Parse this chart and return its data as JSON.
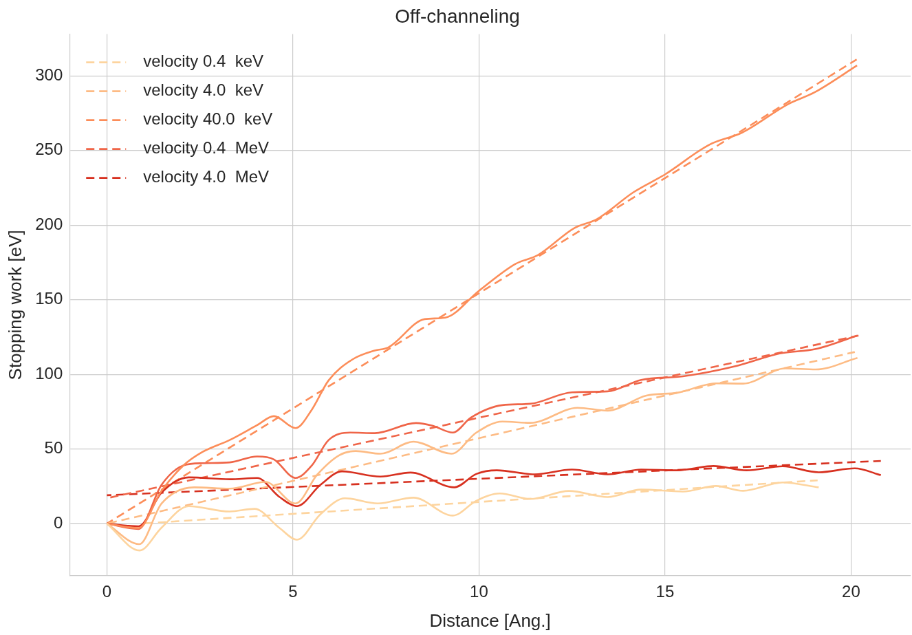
{
  "chart_data": {
    "type": "line",
    "title": "Off-channeling",
    "xlabel": "Distance [Ang.]",
    "ylabel": "Stopping work [eV]",
    "xlim": [
      -1,
      21.6
    ],
    "ylim": [
      -35,
      328
    ],
    "xticks": [
      0,
      5,
      10,
      15,
      20
    ],
    "yticks": [
      0,
      50,
      100,
      150,
      200,
      250,
      300
    ],
    "grid": true,
    "legend": "top left",
    "marker": "none",
    "series": [
      {
        "color": "#fdd49e",
        "line_style": "solid",
        "x": [
          0,
          0.88,
          1.47,
          2.2,
          3.3,
          3.97,
          4.63,
          5.11,
          5.74,
          6.4,
          7.28,
          8.24,
          9.3,
          9.93,
          10.56,
          11.38,
          12.42,
          13.46,
          14.36,
          15.48,
          16.37,
          17.1,
          18.16,
          19.13
        ],
        "values": [
          0,
          -18,
          -2.7,
          11.7,
          8.1,
          9.9,
          -2.7,
          -10.8,
          6.3,
          17,
          13.5,
          17.4,
          5.4,
          15.3,
          20.2,
          16.5,
          21.9,
          17.8,
          22.8,
          21.5,
          25.2,
          22,
          27.6,
          24.3
        ]
      },
      {
        "color": "#fdbb84",
        "line_style": "solid",
        "x": [
          0,
          0.87,
          1.47,
          2.35,
          3.3,
          4.26,
          5.07,
          5.66,
          6.25,
          6.69,
          7.35,
          8.24,
          9.26,
          9.93,
          10.63,
          11.38,
          12.65,
          13.46,
          14.5,
          15.33,
          16.37,
          17.1,
          18.23,
          19.05,
          20.17
        ],
        "values": [
          0,
          -13.8,
          13.5,
          24.3,
          23.4,
          27.9,
          13.5,
          33,
          45.9,
          48.6,
          46.8,
          54.9,
          46.8,
          61,
          68.4,
          67.5,
          77.6,
          75.7,
          85.8,
          87.7,
          94,
          93.8,
          104,
          103.3,
          111
        ]
      },
      {
        "color": "#fc8d59",
        "line_style": "solid",
        "x": [
          0,
          0.85,
          1.47,
          2.06,
          2.57,
          3.3,
          4.04,
          4.49,
          5.07,
          5.5,
          5.96,
          6.6,
          7.2,
          7.56,
          8.54,
          9.09,
          10,
          10.98,
          11.59,
          12.56,
          13.17,
          14.15,
          15,
          16.2,
          17.07,
          18.3,
          19.02,
          20.16
        ],
        "values": [
          0,
          -3,
          22,
          39,
          48,
          56,
          66,
          72,
          64,
          76,
          96,
          110,
          116,
          118,
          137,
          138,
          156,
          174,
          180,
          198,
          204,
          222,
          234,
          254,
          262,
          281,
          289,
          307
        ]
      },
      {
        "color": "#ef6548",
        "line_style": "solid",
        "x": [
          0,
          0.85,
          1.47,
          2.06,
          2.57,
          3.3,
          4.04,
          4.49,
          5.07,
          5.5,
          5.96,
          6.54,
          7.2,
          8.31,
          8.75,
          9.3,
          9.78,
          10.63,
          11.38,
          12.5,
          13.46,
          14.36,
          15.48,
          16.97,
          18.08,
          19.05,
          20.17
        ],
        "values": [
          0,
          -3.6,
          26,
          39,
          40.5,
          41,
          45,
          43,
          30.6,
          38.7,
          56,
          61,
          60.6,
          67.4,
          65.6,
          61,
          71,
          79.4,
          80.3,
          88,
          88.6,
          96.3,
          98.7,
          106,
          114,
          117,
          126
        ]
      },
      {
        "color": "#d7301f",
        "line_style": "solid",
        "x": [
          0,
          0.85,
          1.47,
          2.2,
          3.3,
          4.04,
          4.63,
          5.11,
          5.74,
          6.32,
          7.35,
          8.16,
          9.34,
          9.93,
          10.48,
          11.5,
          12.5,
          13.46,
          14.36,
          15.33,
          16.3,
          17.19,
          18.16,
          19.13,
          20.1,
          20.8
        ],
        "values": [
          0,
          -1.8,
          20.7,
          31,
          29.7,
          30.6,
          18,
          11.7,
          26,
          35,
          31.5,
          34.2,
          24.3,
          33.3,
          35.7,
          33,
          36.2,
          33,
          36.2,
          35.7,
          38.6,
          35.7,
          38.4,
          34.4,
          37,
          32.5
        ]
      },
      {
        "name": "velocity 0.4  keV",
        "color": "#fdd49e",
        "line_style": "dashed",
        "x": [
          0.9,
          19.1
        ],
        "values": [
          0,
          29
        ]
      },
      {
        "name": "velocity 4.0  keV",
        "color": "#fdbb84",
        "line_style": "dashed",
        "x": [
          0,
          20.1
        ],
        "values": [
          0,
          115
        ]
      },
      {
        "name": "velocity 40.0  keV",
        "color": "#fc8d59",
        "line_style": "dashed",
        "x": [
          0,
          20.15
        ],
        "values": [
          0,
          311
        ]
      },
      {
        "name": "velocity 0.4  MeV",
        "color": "#ef6548",
        "line_style": "dashed",
        "x": [
          0,
          20.2
        ],
        "values": [
          17,
          126
        ]
      },
      {
        "name": "velocity 4.0  MeV",
        "color": "#d7301f",
        "line_style": "dashed",
        "x": [
          0,
          20.8
        ],
        "values": [
          19,
          42
        ]
      }
    ]
  }
}
